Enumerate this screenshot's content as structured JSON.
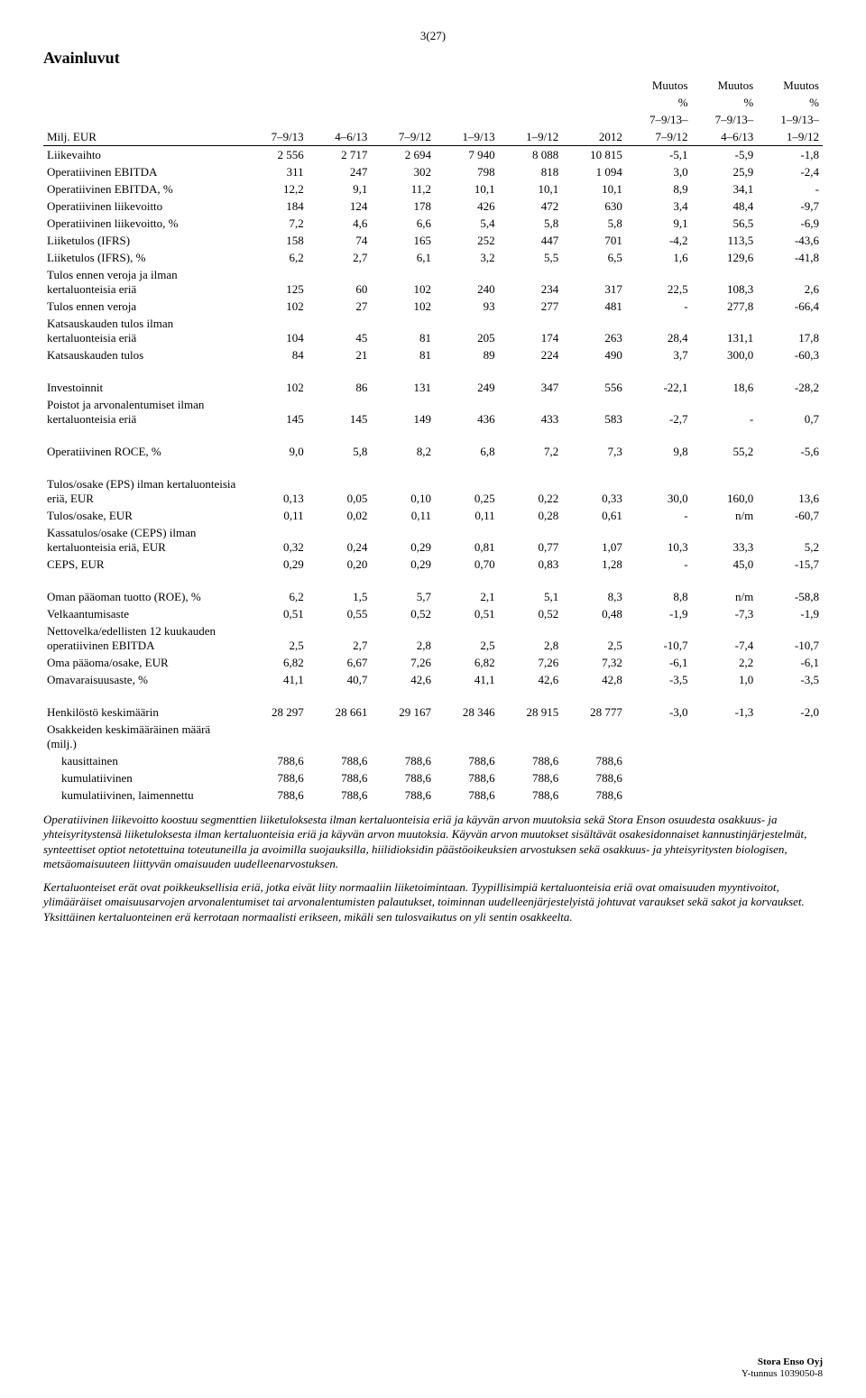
{
  "page_number": "3(27)",
  "section_title": "Avainluvut",
  "columns": {
    "row_header": "Milj. EUR",
    "col_headers_top": [
      "",
      "",
      "",
      "",
      "",
      "",
      "Muutos\n%\n7–9/13–\n7–9/12",
      "Muutos\n%\n7–9/13–\n4–6/13",
      "Muutos\n%\n1–9/13–\n1–9/12"
    ],
    "col_headers": [
      "7–9/13",
      "4–6/13",
      "7–9/12",
      "1–9/13",
      "1–9/12",
      "2012"
    ]
  },
  "blocks": [
    [
      {
        "label": "Liikevaihto",
        "v": [
          "2 556",
          "2 717",
          "2 694",
          "7 940",
          "8 088",
          "10 815",
          "-5,1",
          "-5,9",
          "-1,8"
        ]
      },
      {
        "label": "Operatiivinen EBITDA",
        "v": [
          "311",
          "247",
          "302",
          "798",
          "818",
          "1 094",
          "3,0",
          "25,9",
          "-2,4"
        ]
      },
      {
        "label": "Operatiivinen EBITDA, %",
        "v": [
          "12,2",
          "9,1",
          "11,2",
          "10,1",
          "10,1",
          "10,1",
          "8,9",
          "34,1",
          "-"
        ]
      },
      {
        "label": "Operatiivinen liikevoitto",
        "v": [
          "184",
          "124",
          "178",
          "426",
          "472",
          "630",
          "3,4",
          "48,4",
          "-9,7"
        ]
      },
      {
        "label": "Operatiivinen liikevoitto, %",
        "v": [
          "7,2",
          "4,6",
          "6,6",
          "5,4",
          "5,8",
          "5,8",
          "9,1",
          "56,5",
          "-6,9"
        ]
      },
      {
        "label": "Liiketulos (IFRS)",
        "v": [
          "158",
          "74",
          "165",
          "252",
          "447",
          "701",
          "-4,2",
          "113,5",
          "-43,6"
        ]
      },
      {
        "label": "Liiketulos (IFRS), %",
        "v": [
          "6,2",
          "2,7",
          "6,1",
          "3,2",
          "5,5",
          "6,5",
          "1,6",
          "129,6",
          "-41,8"
        ]
      },
      {
        "label": "Tulos ennen veroja ja ilman kertaluonteisia eriä",
        "v": [
          "125",
          "60",
          "102",
          "240",
          "234",
          "317",
          "22,5",
          "108,3",
          "2,6"
        ]
      },
      {
        "label": "Tulos ennen veroja",
        "v": [
          "102",
          "27",
          "102",
          "93",
          "277",
          "481",
          "-",
          "277,8",
          "-66,4"
        ]
      },
      {
        "label": "Katsauskauden tulos ilman kertaluonteisia eriä",
        "v": [
          "104",
          "45",
          "81",
          "205",
          "174",
          "263",
          "28,4",
          "131,1",
          "17,8"
        ]
      },
      {
        "label": "Katsauskauden tulos",
        "v": [
          "84",
          "21",
          "81",
          "89",
          "224",
          "490",
          "3,7",
          "300,0",
          "-60,3"
        ]
      }
    ],
    [
      {
        "label": "Investoinnit",
        "v": [
          "102",
          "86",
          "131",
          "249",
          "347",
          "556",
          "-22,1",
          "18,6",
          "-28,2"
        ]
      },
      {
        "label": "Poistot ja arvonalentumiset ilman kertaluonteisia eriä",
        "v": [
          "145",
          "145",
          "149",
          "436",
          "433",
          "583",
          "-2,7",
          "-",
          "0,7"
        ]
      }
    ],
    [
      {
        "label": "Operatiivinen ROCE, %",
        "v": [
          "9,0",
          "5,8",
          "8,2",
          "6,8",
          "7,2",
          "7,3",
          "9,8",
          "55,2",
          "-5,6"
        ]
      }
    ],
    [
      {
        "label": "Tulos/osake (EPS) ilman kertaluonteisia eriä, EUR",
        "v": [
          "0,13",
          "0,05",
          "0,10",
          "0,25",
          "0,22",
          "0,33",
          "30,0",
          "160,0",
          "13,6"
        ]
      },
      {
        "label": "Tulos/osake, EUR",
        "v": [
          "0,11",
          "0,02",
          "0,11",
          "0,11",
          "0,28",
          "0,61",
          "-",
          "n/m",
          "-60,7"
        ]
      },
      {
        "label": "Kassatulos/osake (CEPS) ilman kertaluonteisia eriä, EUR",
        "v": [
          "0,32",
          "0,24",
          "0,29",
          "0,81",
          "0,77",
          "1,07",
          "10,3",
          "33,3",
          "5,2"
        ]
      },
      {
        "label": "CEPS, EUR",
        "v": [
          "0,29",
          "0,20",
          "0,29",
          "0,70",
          "0,83",
          "1,28",
          "-",
          "45,0",
          "-15,7"
        ]
      }
    ],
    [
      {
        "label": "Oman pääoman tuotto (ROE), %",
        "v": [
          "6,2",
          "1,5",
          "5,7",
          "2,1",
          "5,1",
          "8,3",
          "8,8",
          "n/m",
          "-58,8"
        ]
      },
      {
        "label": "Velkaantumisaste",
        "v": [
          "0,51",
          "0,55",
          "0,52",
          "0,51",
          "0,52",
          "0,48",
          "-1,9",
          "-7,3",
          "-1,9"
        ]
      },
      {
        "label": "Nettovelka/edellisten 12 kuukauden operatiivinen EBITDA",
        "v": [
          "2,5",
          "2,7",
          "2,8",
          "2,5",
          "2,8",
          "2,5",
          "-10,7",
          "-7,4",
          "-10,7"
        ]
      },
      {
        "label": "Oma pääoma/osake, EUR",
        "v": [
          "6,82",
          "6,67",
          "7,26",
          "6,82",
          "7,26",
          "7,32",
          "-6,1",
          "2,2",
          "-6,1"
        ]
      },
      {
        "label": "Omavaraisuusaste, %",
        "v": [
          "41,1",
          "40,7",
          "42,6",
          "41,1",
          "42,6",
          "42,8",
          "-3,5",
          "1,0",
          "-3,5"
        ]
      }
    ],
    [
      {
        "label": "Henkilöstö keskimäärin",
        "v": [
          "28 297",
          "28 661",
          "29 167",
          "28 346",
          "28 915",
          "28 777",
          "-3,0",
          "-1,3",
          "-2,0"
        ]
      },
      {
        "label": "Osakkeiden keskimääräinen määrä (milj.)",
        "v": [
          "",
          "",
          "",
          "",
          "",
          "",
          "",
          "",
          ""
        ]
      },
      {
        "label": "    kausittainen",
        "v": [
          "788,6",
          "788,6",
          "788,6",
          "788,6",
          "788,6",
          "788,6",
          "",
          "",
          ""
        ]
      },
      {
        "label": "    kumulatiivinen",
        "v": [
          "788,6",
          "788,6",
          "788,6",
          "788,6",
          "788,6",
          "788,6",
          "",
          "",
          ""
        ]
      },
      {
        "label": "    kumulatiivinen, laimennettu",
        "v": [
          "788,6",
          "788,6",
          "788,6",
          "788,6",
          "788,6",
          "788,6",
          "",
          "",
          ""
        ]
      }
    ]
  ],
  "footnotes": [
    "Operatiivinen liikevoitto koostuu segmenttien liiketuloksesta ilman kertaluonteisia eriä ja käyvän arvon muutoksia sekä Stora Enson osuudesta osakkuus- ja yhteisyritystensä liiketuloksesta ilman kertaluonteisia eriä ja käyvän arvon muutoksia. Käyvän arvon muutokset sisältävät osakesidonnaiset kannustinjärjestelmät, synteettiset optiot netotettuina toteutuneilla ja avoimilla suojauksilla, hiilidioksidin päästöoikeuksien arvostuksen sekä osakkuus- ja yhteisyritysten biologisen, metsäomaisuuteen liittyvän omaisuuden uudelleenarvostuksen.",
    "Kertaluonteiset erät ovat poikkeuksellisia eriä, jotka eivät liity normaaliin liiketoimintaan. Tyypillisimpiä kertaluonteisia eriä ovat omaisuuden myyntivoitot, ylimääräiset omaisuusarvojen arvonalentumiset tai arvonalentumisten palautukset, toiminnan uudelleenjärjestelyistä johtuvat varaukset sekä sakot ja korvaukset. Yksittäinen kertaluonteinen erä kerrotaan normaalisti erikseen, mikäli sen tulosvaikutus on yli sentin osakkeelta."
  ],
  "footer": {
    "company": "Stora Enso Oyj",
    "id": "Y-tunnus 1039050-8"
  }
}
